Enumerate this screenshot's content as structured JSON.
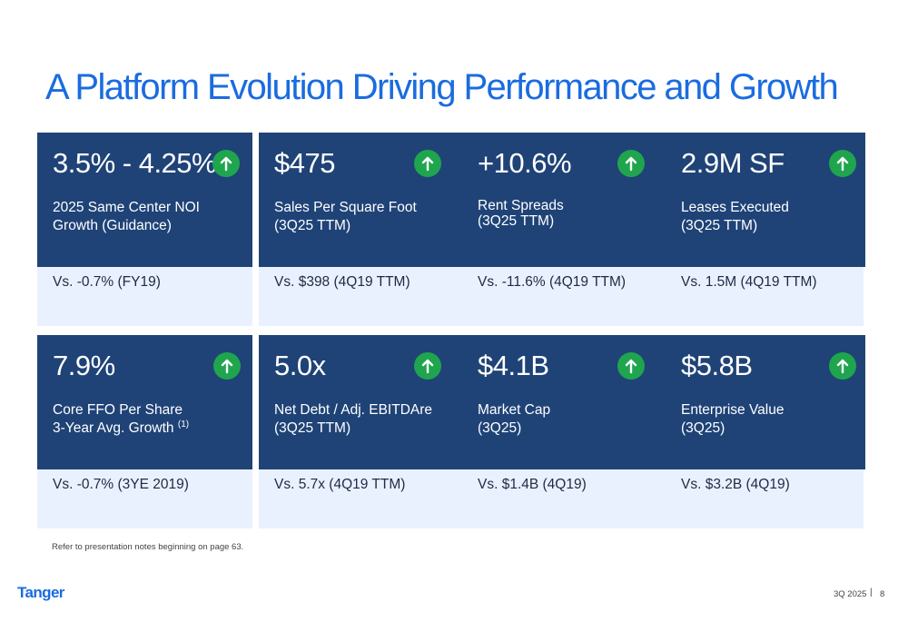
{
  "title": "A Platform Evolution Driving Performance and Growth",
  "colors": {
    "title": "#1a6ce0",
    "card_top": "#1f4377",
    "card_bottom": "#e9f1fe",
    "arrow_badge": "#1fa54e"
  },
  "cards": [
    {
      "metric": "3.5% - 4.25%",
      "desc_line1": "2025 Same Center NOI",
      "desc_line2": "Growth (Guidance)",
      "desc_sup": "",
      "comparison": "Vs. -0.7% (FY19)",
      "icon": "arrow-up-icon"
    },
    {
      "metric": "$475",
      "desc_line1": "Sales Per Square Foot",
      "desc_line2": "(3Q25 TTM)",
      "desc_sup": "",
      "comparison": "Vs. $398 (4Q19 TTM)",
      "icon": "arrow-up-icon"
    },
    {
      "metric": "+10.6%",
      "desc_line1": "Rent Spreads",
      "desc_line2": "(3Q25 TTM)",
      "desc_sup": "",
      "comparison": "Vs. -11.6% (4Q19 TTM)",
      "icon": "arrow-up-icon"
    },
    {
      "metric": "2.9M SF",
      "desc_line1": "Leases Executed",
      "desc_line2": "(3Q25 TTM)",
      "desc_sup": "",
      "comparison": "Vs. 1.5M (4Q19 TTM)",
      "icon": "arrow-up-icon"
    },
    {
      "metric": "7.9%",
      "desc_line1": "Core FFO Per Share",
      "desc_line2": "3-Year Avg. Growth",
      "desc_sup": "(1)",
      "comparison": "Vs. -0.7% (3YE 2019)",
      "icon": "arrow-up-icon"
    },
    {
      "metric": "5.0x",
      "desc_line1": "Net Debt / Adj. EBITDAre",
      "desc_line2": "(3Q25 TTM)",
      "desc_sup": "",
      "comparison": "Vs. 5.7x (4Q19 TTM)",
      "icon": "arrow-up-icon"
    },
    {
      "metric": "$4.1B",
      "desc_line1": "Market Cap",
      "desc_line2": "(3Q25)",
      "desc_sup": "",
      "comparison": "Vs. $1.4B (4Q19)",
      "icon": "arrow-up-icon"
    },
    {
      "metric": "$5.8B",
      "desc_line1": "Enterprise Value",
      "desc_line2": "(3Q25)",
      "desc_sup": "",
      "comparison": "Vs. $3.2B (4Q19)",
      "icon": "arrow-up-icon"
    }
  ],
  "footnote": "Refer to presentation notes beginning on page 63.",
  "footer": {
    "logo": "Tanger",
    "period": "3Q 2025",
    "divider": "|",
    "page_number": "8"
  }
}
